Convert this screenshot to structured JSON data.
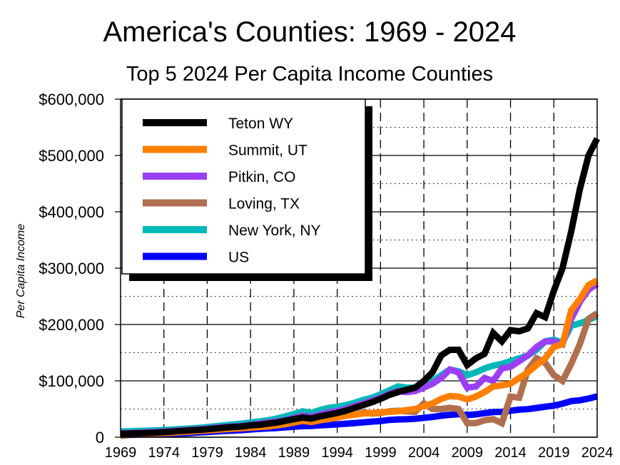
{
  "chart_data": {
    "type": "line",
    "title": "America's Counties: 1969 - 2024",
    "subtitle": "Top 5 2024 Per Capita Income Counties",
    "xlabel": "",
    "ylabel": "Per Capita Income",
    "xlim": [
      1969,
      2024
    ],
    "ylim": [
      0,
      600000
    ],
    "x_ticks": [
      "1969",
      "1974",
      "1979",
      "1984",
      "1989",
      "1994",
      "1999",
      "2004",
      "2009",
      "2014",
      "2019",
      "2024"
    ],
    "y_ticks": [
      "0",
      "$100,000",
      "$200,000",
      "$300,000",
      "$400,000",
      "$500,000",
      "$600,000"
    ],
    "grid": "solid major horizontal at 100,000; dotted minor at 50,000; dashed vertical every 5 years",
    "legend_position": "top-left",
    "units_note": "series values in thousands of dollars",
    "x_start": 1969,
    "series": [
      {
        "name": "Teton WY",
        "color": "#000000",
        "values": [
          6,
          6.5,
          7,
          7.5,
          8,
          9,
          10,
          11,
          12,
          13,
          14,
          15.5,
          17,
          18,
          19,
          21,
          22,
          24,
          26,
          29,
          32,
          35,
          33,
          37,
          40,
          43,
          47,
          52,
          57,
          62,
          68,
          75,
          80,
          84,
          88,
          100,
          115,
          145,
          155,
          155,
          128,
          140,
          148,
          185,
          170,
          190,
          188,
          193,
          220,
          213,
          260,
          300,
          365,
          440,
          500,
          530
        ]
      },
      {
        "name": "Summit, UT",
        "color": "#ff8000",
        "values": [
          5,
          5.5,
          6,
          6.5,
          7,
          7.5,
          8,
          9,
          10,
          11,
          12,
          13,
          14,
          15,
          16,
          17,
          18,
          19,
          21,
          23,
          26,
          29,
          27,
          30,
          32,
          35,
          38,
          40,
          42,
          43,
          44,
          45,
          46,
          48,
          50,
          55,
          60,
          68,
          73,
          72,
          67,
          72,
          80,
          90,
          92,
          95,
          105,
          115,
          128,
          140,
          160,
          165,
          225,
          245,
          270,
          278
        ]
      },
      {
        "name": "Pitkin, CO",
        "color": "#9b3ff5",
        "values": [
          7,
          7.5,
          8,
          8.5,
          9,
          10,
          11,
          12,
          13,
          14,
          15,
          17,
          18,
          19,
          20,
          22,
          24,
          26,
          28,
          30,
          34,
          38,
          36,
          40,
          44,
          46,
          50,
          55,
          60,
          65,
          70,
          77,
          82,
          80,
          82,
          88,
          95,
          105,
          120,
          115,
          88,
          90,
          105,
          100,
          122,
          125,
          135,
          145,
          160,
          170,
          170,
          165,
          210,
          240,
          262,
          272
        ]
      },
      {
        "name": "Loving, TX",
        "color": "#b07050",
        "values": [
          2,
          4,
          8,
          9,
          8,
          9,
          10,
          12,
          13,
          12,
          13,
          16,
          18,
          17,
          19,
          20,
          22,
          24,
          25,
          28,
          30,
          32,
          30,
          34,
          36,
          38,
          42,
          40,
          44,
          42,
          43,
          46,
          47,
          46,
          45,
          60,
          50,
          50,
          52,
          50,
          25,
          25,
          30,
          32,
          25,
          72,
          70,
          120,
          140,
          132,
          110,
          100,
          130,
          165,
          210,
          220
        ]
      },
      {
        "name": "New York, NY",
        "color": "#00b8b8",
        "values": [
          10,
          10.5,
          11,
          11.5,
          12,
          12.8,
          13.5,
          14.5,
          15.5,
          16.5,
          18,
          19.5,
          21,
          22.5,
          24,
          26,
          28,
          30,
          33,
          37,
          41,
          46,
          43,
          48,
          52,
          54,
          57,
          61,
          66,
          70,
          76,
          83,
          90,
          88,
          88,
          93,
          100,
          110,
          120,
          117,
          110,
          115,
          122,
          127,
          130,
          135,
          140,
          145,
          155,
          170,
          173,
          168,
          198,
          202,
          208,
          215
        ]
      },
      {
        "name": "US",
        "color": "#0000ff",
        "values": [
          3.9,
          4.1,
          4.4,
          4.8,
          5.3,
          5.8,
          6.2,
          6.8,
          7.4,
          8.3,
          9.2,
          10.1,
          11.2,
          11.8,
          12.5,
          13.8,
          14.7,
          15.4,
          16.3,
          17.4,
          18.6,
          19.6,
          20.0,
          21.0,
          21.9,
          22.8,
          23.9,
          25.0,
          26.3,
          27.6,
          28.6,
          30.6,
          31.5,
          31.8,
          32.7,
          34.3,
          35.9,
          38.1,
          39.8,
          40.7,
          39.3,
          40.5,
          42.7,
          44.6,
          44.9,
          47.0,
          48.9,
          49.8,
          51.9,
          54.0,
          56.0,
          59.5,
          64.1,
          65.5,
          68.5,
          72.4
        ]
      }
    ]
  }
}
